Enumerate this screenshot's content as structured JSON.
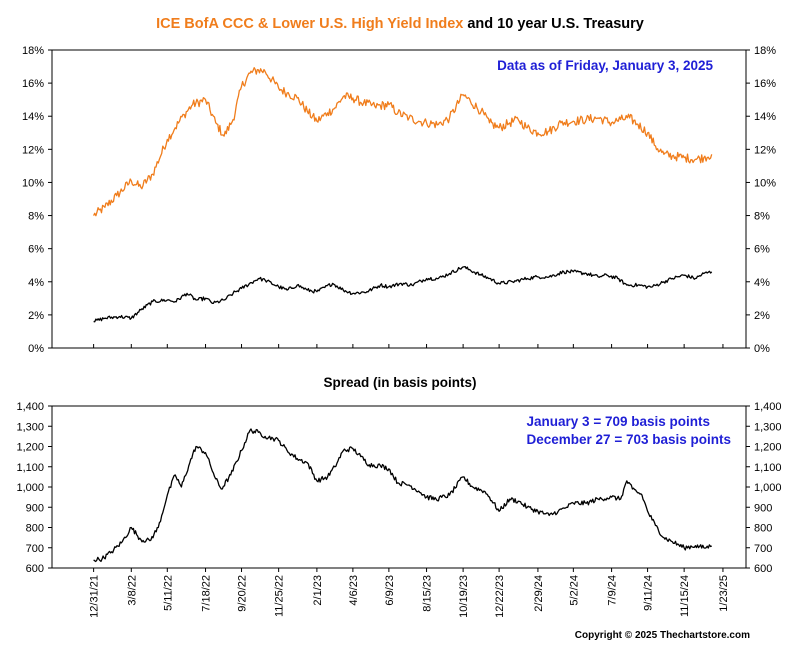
{
  "title": {
    "part1": "ICE BofA CCC & Lower U.S. High Yield Index",
    "part2": " and 10 year U.S. Treasury"
  },
  "annotations": {
    "date_note": "Data as of Friday, January 3, 2025",
    "spread_title": "Spread (in basis points)",
    "spread_note1": "January 3 = 709 basis points",
    "spread_note2": "December 27 = 703 basis points",
    "copyright": "Copyright © 2025 Thechartstore.com"
  },
  "colors": {
    "hy": "#f07d1c",
    "treasury": "#000000",
    "spread": "#000000",
    "accent_blue": "#1f1fd6",
    "title_orange": "#f07d1c"
  },
  "chart_data": [
    {
      "type": "line",
      "title": "ICE BofA CCC & Lower U.S. High Yield Index and 10 year U.S. Treasury",
      "xlim": [
        "2021-10-18",
        "2025-03-05"
      ],
      "ylim": [
        0,
        18
      ],
      "yticks": [
        "0%",
        "2%",
        "4%",
        "6%",
        "8%",
        "10%",
        "12%",
        "14%",
        "16%",
        "18%"
      ],
      "grid": false,
      "series": [
        {
          "key": "hy",
          "points": [
            [
              "2021-12-31",
              8.0
            ],
            [
              "2022-01-20",
              8.5
            ],
            [
              "2022-02-10",
              9.2
            ],
            [
              "2022-03-08",
              10.1
            ],
            [
              "2022-03-25",
              9.7
            ],
            [
              "2022-04-15",
              10.5
            ],
            [
              "2022-05-11",
              12.6
            ],
            [
              "2022-05-25",
              13.3
            ],
            [
              "2022-06-10",
              14.1
            ],
            [
              "2022-06-25",
              14.7
            ],
            [
              "2022-07-18",
              15.0
            ],
            [
              "2022-08-05",
              13.6
            ],
            [
              "2022-08-20",
              12.8
            ],
            [
              "2022-09-05",
              13.8
            ],
            [
              "2022-09-20",
              15.8
            ],
            [
              "2022-10-05",
              16.6
            ],
            [
              "2022-10-20",
              16.8
            ],
            [
              "2022-11-01",
              16.7
            ],
            [
              "2022-11-25",
              15.7
            ],
            [
              "2022-12-10",
              15.4
            ],
            [
              "2022-12-28",
              15.1
            ],
            [
              "2023-01-15",
              14.3
            ],
            [
              "2023-02-01",
              13.7
            ],
            [
              "2023-02-20",
              14.2
            ],
            [
              "2023-03-05",
              14.5
            ],
            [
              "2023-03-20",
              15.2
            ],
            [
              "2023-04-06",
              15.1
            ],
            [
              "2023-04-25",
              14.8
            ],
            [
              "2023-05-15",
              14.6
            ],
            [
              "2023-06-09",
              14.7
            ],
            [
              "2023-06-25",
              14.2
            ],
            [
              "2023-07-15",
              13.9
            ],
            [
              "2023-08-01",
              13.7
            ],
            [
              "2023-08-15",
              13.6
            ],
            [
              "2023-09-05",
              13.5
            ],
            [
              "2023-09-25",
              13.9
            ],
            [
              "2023-10-19",
              15.3
            ],
            [
              "2023-11-01",
              14.9
            ],
            [
              "2023-11-20",
              14.3
            ],
            [
              "2023-12-05",
              13.6
            ],
            [
              "2023-12-22",
              13.3
            ],
            [
              "2024-01-10",
              13.6
            ],
            [
              "2024-01-25",
              13.8
            ],
            [
              "2024-02-10",
              13.3
            ],
            [
              "2024-02-29",
              13.0
            ],
            [
              "2024-03-20",
              13.1
            ],
            [
              "2024-04-10",
              13.6
            ],
            [
              "2024-05-02",
              13.7
            ],
            [
              "2024-05-25",
              13.8
            ],
            [
              "2024-06-15",
              13.9
            ],
            [
              "2024-07-09",
              13.6
            ],
            [
              "2024-07-25",
              13.8
            ],
            [
              "2024-08-10",
              13.9
            ],
            [
              "2024-08-25",
              13.5
            ],
            [
              "2024-09-11",
              13.0
            ],
            [
              "2024-09-25",
              12.2
            ],
            [
              "2024-10-10",
              11.7
            ],
            [
              "2024-10-25",
              11.6
            ],
            [
              "2024-11-15",
              11.5
            ],
            [
              "2024-12-05",
              11.4
            ],
            [
              "2024-12-20",
              11.5
            ],
            [
              "2025-01-03",
              11.7
            ]
          ]
        },
        {
          "key": "treasury",
          "points": [
            [
              "2021-12-31",
              1.6
            ],
            [
              "2022-01-20",
              1.8
            ],
            [
              "2022-02-15",
              1.9
            ],
            [
              "2022-03-08",
              1.8
            ],
            [
              "2022-03-25",
              2.3
            ],
            [
              "2022-04-15",
              2.8
            ],
            [
              "2022-05-11",
              2.9
            ],
            [
              "2022-05-25",
              2.8
            ],
            [
              "2022-06-15",
              3.3
            ],
            [
              "2022-07-01",
              2.9
            ],
            [
              "2022-07-18",
              3.0
            ],
            [
              "2022-08-01",
              2.7
            ],
            [
              "2022-08-20",
              2.9
            ],
            [
              "2022-09-05",
              3.3
            ],
            [
              "2022-09-20",
              3.6
            ],
            [
              "2022-10-20",
              4.2
            ],
            [
              "2022-11-01",
              4.1
            ],
            [
              "2022-11-25",
              3.7
            ],
            [
              "2022-12-10",
              3.5
            ],
            [
              "2022-12-28",
              3.8
            ],
            [
              "2023-01-15",
              3.5
            ],
            [
              "2023-02-01",
              3.4
            ],
            [
              "2023-03-01",
              3.9
            ],
            [
              "2023-03-20",
              3.5
            ],
            [
              "2023-04-06",
              3.3
            ],
            [
              "2023-05-01",
              3.4
            ],
            [
              "2023-05-25",
              3.8
            ],
            [
              "2023-06-09",
              3.7
            ],
            [
              "2023-07-01",
              3.9
            ],
            [
              "2023-07-20",
              3.8
            ],
            [
              "2023-08-15",
              4.2
            ],
            [
              "2023-09-05",
              4.2
            ],
            [
              "2023-09-25",
              4.5
            ],
            [
              "2023-10-19",
              4.9
            ],
            [
              "2023-11-01",
              4.7
            ],
            [
              "2023-11-20",
              4.4
            ],
            [
              "2023-12-05",
              4.2
            ],
            [
              "2023-12-22",
              3.9
            ],
            [
              "2024-01-15",
              4.0
            ],
            [
              "2024-02-10",
              4.2
            ],
            [
              "2024-02-29",
              4.3
            ],
            [
              "2024-03-20",
              4.3
            ],
            [
              "2024-04-15",
              4.6
            ],
            [
              "2024-05-02",
              4.6
            ],
            [
              "2024-05-25",
              4.5
            ],
            [
              "2024-06-15",
              4.3
            ],
            [
              "2024-07-01",
              4.4
            ],
            [
              "2024-07-20",
              4.2
            ],
            [
              "2024-08-05",
              3.8
            ],
            [
              "2024-08-25",
              3.8
            ],
            [
              "2024-09-11",
              3.7
            ],
            [
              "2024-09-20",
              3.7
            ],
            [
              "2024-10-10",
              4.0
            ],
            [
              "2024-10-25",
              4.2
            ],
            [
              "2024-11-15",
              4.4
            ],
            [
              "2024-12-05",
              4.2
            ],
            [
              "2024-12-20",
              4.5
            ],
            [
              "2025-01-03",
              4.6
            ]
          ]
        }
      ]
    },
    {
      "type": "line",
      "title": "Spread (in basis points)",
      "xlim": [
        "2021-10-18",
        "2025-03-05"
      ],
      "ylim": [
        600,
        1400
      ],
      "yticks": [
        "600",
        "700",
        "800",
        "900",
        "1,000",
        "1,100",
        "1,200",
        "1,300",
        "1,400"
      ],
      "grid": false,
      "xticks": [
        "12/31/21",
        "3/8/22",
        "5/11/22",
        "7/18/22",
        "9/20/22",
        "11/25/22",
        "2/1/23",
        "4/6/23",
        "6/9/23",
        "8/15/23",
        "10/19/23",
        "12/22/23",
        "2/29/24",
        "5/2/24",
        "7/9/24",
        "9/11/24",
        "11/15/24",
        "1/23/25"
      ],
      "series": [
        {
          "key": "spread",
          "points": [
            [
              "2021-12-31",
              640
            ],
            [
              "2022-01-15",
              645
            ],
            [
              "2022-02-01",
              680
            ],
            [
              "2022-02-20",
              730
            ],
            [
              "2022-03-08",
              800
            ],
            [
              "2022-03-25",
              740
            ],
            [
              "2022-04-10",
              735
            ],
            [
              "2022-04-25",
              800
            ],
            [
              "2022-05-11",
              960
            ],
            [
              "2022-05-25",
              1060
            ],
            [
              "2022-06-05",
              1000
            ],
            [
              "2022-06-20",
              1120
            ],
            [
              "2022-07-01",
              1200
            ],
            [
              "2022-07-18",
              1170
            ],
            [
              "2022-08-05",
              1040
            ],
            [
              "2022-08-15",
              990
            ],
            [
              "2022-09-01",
              1060
            ],
            [
              "2022-09-20",
              1180
            ],
            [
              "2022-10-05",
              1280
            ],
            [
              "2022-10-20",
              1270
            ],
            [
              "2022-11-01",
              1250
            ],
            [
              "2022-11-15",
              1240
            ],
            [
              "2022-11-25",
              1230
            ],
            [
              "2022-12-10",
              1180
            ],
            [
              "2022-12-28",
              1140
            ],
            [
              "2023-01-15",
              1120
            ],
            [
              "2023-02-01",
              1030
            ],
            [
              "2023-02-20",
              1050
            ],
            [
              "2023-03-05",
              1100
            ],
            [
              "2023-03-20",
              1180
            ],
            [
              "2023-04-06",
              1190
            ],
            [
              "2023-04-20",
              1150
            ],
            [
              "2023-05-05",
              1110
            ],
            [
              "2023-05-25",
              1105
            ],
            [
              "2023-06-09",
              1090
            ],
            [
              "2023-06-25",
              1020
            ],
            [
              "2023-07-15",
              1010
            ],
            [
              "2023-08-01",
              980
            ],
            [
              "2023-08-15",
              950
            ],
            [
              "2023-09-01",
              940
            ],
            [
              "2023-09-25",
              960
            ],
            [
              "2023-10-19",
              1050
            ],
            [
              "2023-11-05",
              1000
            ],
            [
              "2023-11-25",
              980
            ],
            [
              "2023-12-05",
              950
            ],
            [
              "2023-12-22",
              880
            ],
            [
              "2024-01-10",
              940
            ],
            [
              "2024-01-25",
              930
            ],
            [
              "2024-02-10",
              900
            ],
            [
              "2024-02-29",
              880
            ],
            [
              "2024-03-20",
              860
            ],
            [
              "2024-04-05",
              880
            ],
            [
              "2024-04-20",
              900
            ],
            [
              "2024-05-02",
              920
            ],
            [
              "2024-05-25",
              920
            ],
            [
              "2024-06-15",
              940
            ],
            [
              "2024-07-09",
              950
            ],
            [
              "2024-07-25",
              940
            ],
            [
              "2024-08-05",
              1030
            ],
            [
              "2024-08-15",
              990
            ],
            [
              "2024-09-01",
              960
            ],
            [
              "2024-09-11",
              880
            ],
            [
              "2024-09-25",
              810
            ],
            [
              "2024-10-10",
              750
            ],
            [
              "2024-10-25",
              730
            ],
            [
              "2024-11-15",
              700
            ],
            [
              "2024-12-05",
              710
            ],
            [
              "2024-12-20",
              700
            ],
            [
              "2025-01-03",
              709
            ]
          ]
        }
      ]
    }
  ]
}
